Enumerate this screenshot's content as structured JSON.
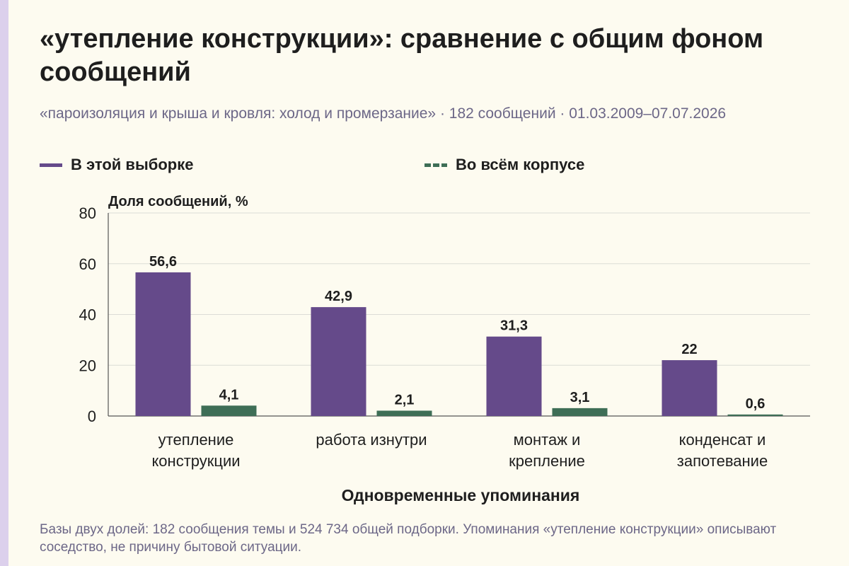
{
  "title": "«утепление конструкции»: сравнение с общим фоном сообщений",
  "subtitle": "«пароизоляция и крыша и кровля: холод и промерзание» · 182 сообщений · 01.03.2009–07.07.2026",
  "footnote": "Базы двух долей: 182 сообщения темы и 524 734 общей подборки. Упоминания «утепление конструкции» описывают соседство, не причину бытовой ситуации.",
  "colors": {
    "series_sample": "#654a8a",
    "series_corpus": "#3e6e56",
    "background": "#fdfbf0",
    "accent_stripe": "#dcd0ec"
  },
  "chart_data": {
    "type": "bar",
    "ylabel": "Доля сообщений, %",
    "xlabel": "Одновременные упоминания",
    "ylim": [
      0,
      80
    ],
    "yticks": [
      "0",
      "20",
      "40",
      "60",
      "80"
    ],
    "categories": [
      [
        "утепление",
        "конструкции"
      ],
      [
        "работа изнутри"
      ],
      [
        "монтаж и",
        "крепление"
      ],
      [
        "конденсат и",
        "запотевание"
      ]
    ],
    "series": [
      {
        "name": "В этой выборке",
        "values": [
          56.6,
          42.9,
          31.3,
          22
        ],
        "labels": [
          "56,6",
          "42,9",
          "31,3",
          "22"
        ]
      },
      {
        "name": "Во всём корпусе",
        "values": [
          4.1,
          2.1,
          3.1,
          0.6
        ],
        "labels": [
          "4,1",
          "2,1",
          "3,1",
          "0,6"
        ]
      }
    ],
    "grid": true,
    "legend_position": "top"
  }
}
